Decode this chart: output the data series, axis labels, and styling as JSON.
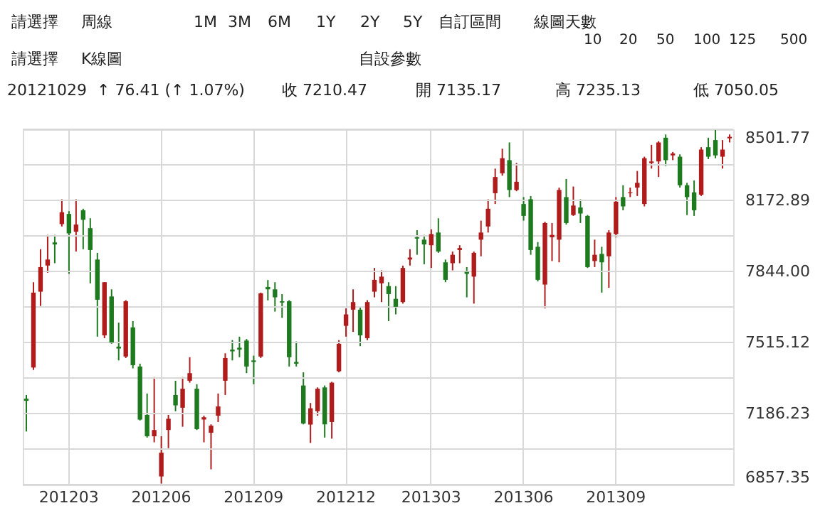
{
  "chart_data": {
    "type": "candlestick",
    "annotations": [
      "請選擇",
      "周線",
      "1M",
      "3M",
      "6M",
      "1Y",
      "2Y",
      "5Y",
      "自訂區間",
      "線圖天數",
      "10",
      "20",
      "50",
      "100",
      "125",
      "500",
      "請選擇",
      "K線圖",
      "自設參數",
      "20121029",
      "↑ 76.41 (↑ 1.07%)",
      "收 7210.47",
      "開 7135.17",
      "高 7235.13",
      "低 7050.05"
    ],
    "categories": [
      null,
      null,
      null,
      null,
      null,
      null,
      "201203",
      null,
      null,
      null,
      null,
      null,
      null,
      null,
      null,
      null,
      null,
      null,
      null,
      "201206",
      null,
      null,
      null,
      null,
      null,
      null,
      null,
      null,
      null,
      null,
      null,
      null,
      "201209",
      null,
      null,
      null,
      null,
      null,
      null,
      null,
      null,
      null,
      null,
      null,
      null,
      "201212",
      null,
      null,
      null,
      null,
      null,
      null,
      null,
      null,
      null,
      null,
      null,
      "201303",
      null,
      null,
      null,
      null,
      null,
      null,
      null,
      null,
      null,
      null,
      null,
      null,
      "201306",
      null,
      null,
      null,
      null,
      null,
      null,
      null,
      null,
      null,
      null,
      null,
      null,
      "201309",
      null,
      null,
      null,
      null,
      null,
      null,
      null,
      null,
      null,
      null,
      null,
      null,
      null,
      null,
      null,
      null
    ],
    "ohlc": [
      [
        7255,
        7272,
        7103,
        7245
      ],
      [
        7399,
        7794,
        7388,
        7746
      ],
      [
        7750,
        7947,
        7684,
        7864
      ],
      [
        7871,
        8013,
        7838,
        7899
      ],
      [
        7978,
        8013,
        7882,
        7969
      ],
      [
        8063,
        8178,
        8052,
        8118
      ],
      [
        8110,
        8123,
        7833,
        8020
      ],
      [
        8028,
        8178,
        7936,
        8061
      ],
      [
        8127,
        8134,
        7947,
        8083
      ],
      [
        8044,
        8090,
        7789,
        7943
      ],
      [
        7899,
        7930,
        7542,
        7713
      ],
      [
        7548,
        7794,
        7535,
        7794
      ],
      [
        7728,
        7761,
        7509,
        7515
      ],
      [
        7496,
        7607,
        7432,
        7487
      ],
      [
        7450,
        7711,
        7443,
        7706
      ],
      [
        7585,
        7614,
        7395,
        7410
      ],
      [
        7404,
        7417,
        7154,
        7158
      ],
      [
        7180,
        7279,
        7075,
        7081
      ],
      [
        7081,
        7355,
        7053,
        7110
      ],
      [
        6895,
        7081,
        6862,
        7005
      ],
      [
        7110,
        7180,
        7026,
        7162
      ],
      [
        7272,
        7338,
        7197,
        7224
      ],
      [
        7213,
        7355,
        7125,
        7301
      ],
      [
        7338,
        7447,
        7329,
        7373
      ],
      [
        7301,
        7322,
        7110,
        7114
      ],
      [
        7158,
        7176,
        7053,
        7169
      ],
      [
        7097,
        7136,
        6928,
        7130
      ],
      [
        7176,
        7279,
        7147,
        7219
      ],
      [
        7338,
        7465,
        7272,
        7443
      ],
      [
        7482,
        7526,
        7432,
        7474
      ],
      [
        7491,
        7542,
        7447,
        7482
      ],
      [
        7524,
        7531,
        7373,
        7404
      ],
      [
        7432,
        7454,
        7322,
        7425
      ],
      [
        7450,
        7746,
        7443,
        7743
      ],
      [
        7772,
        7804,
        7710,
        7761
      ],
      [
        7761,
        7794,
        7658,
        7724
      ],
      [
        7706,
        7739,
        7629,
        7700
      ],
      [
        7706,
        7711,
        7404,
        7447
      ],
      [
        7425,
        7520,
        7404,
        7417
      ],
      [
        7316,
        7377,
        7136,
        7140
      ],
      [
        7135.17,
        7235.13,
        7050.05,
        7210.47
      ],
      [
        7197,
        7307,
        7176,
        7301
      ],
      [
        7307,
        7316,
        7075,
        7136
      ],
      [
        7147,
        7333,
        7070,
        7329
      ],
      [
        7382,
        7526,
        7377,
        7509
      ],
      [
        7592,
        7673,
        7542,
        7645
      ],
      [
        7667,
        7761,
        7564,
        7702
      ],
      [
        7667,
        7680,
        7498,
        7548
      ],
      [
        7535,
        7711,
        7526,
        7702
      ],
      [
        7750,
        7860,
        7724,
        7805
      ],
      [
        7789,
        7849,
        7702,
        7820
      ],
      [
        7776,
        7794,
        7614,
        7739
      ],
      [
        7717,
        7776,
        7645,
        7680
      ],
      [
        7702,
        7871,
        7695,
        7860
      ],
      [
        7899,
        7947,
        7871,
        7908
      ],
      [
        8002,
        8035,
        7921,
        7996
      ],
      [
        7991,
        8013,
        7877,
        7969
      ],
      [
        7965,
        8039,
        7860,
        8017
      ],
      [
        8024,
        8090,
        7930,
        7936
      ],
      [
        7886,
        7899,
        7794,
        7805
      ],
      [
        7882,
        7936,
        7849,
        7921
      ],
      [
        7943,
        7965,
        7882,
        7952
      ],
      [
        7842,
        7864,
        7724,
        7833
      ],
      [
        7820,
        7936,
        7695,
        7930
      ],
      [
        7991,
        8079,
        7914,
        8024
      ],
      [
        8052,
        8178,
        8024,
        8134
      ],
      [
        8206,
        8320,
        8156,
        8281
      ],
      [
        8298,
        8412,
        8287,
        8368
      ],
      [
        8359,
        8441,
        8188,
        8221
      ],
      [
        8221,
        8346,
        8215,
        8259
      ],
      [
        8156,
        8188,
        8079,
        8101
      ],
      [
        8178,
        8193,
        7921,
        7943
      ],
      [
        7958,
        7980,
        7798,
        7805
      ],
      [
        7783,
        8074,
        7673,
        8068
      ],
      [
        8002,
        8068,
        7892,
        8013
      ],
      [
        7991,
        8232,
        7886,
        8221
      ],
      [
        8188,
        8272,
        8061,
        8068
      ],
      [
        8105,
        8237,
        8101,
        8149
      ],
      [
        8140,
        8178,
        8068,
        8112
      ],
      [
        8101,
        8105,
        7860,
        7864
      ],
      [
        7892,
        7991,
        7864,
        7921
      ],
      [
        7925,
        7958,
        7746,
        7886
      ],
      [
        7914,
        8035,
        7768,
        8024
      ],
      [
        8017,
        8188,
        8002,
        8167
      ],
      [
        8188,
        8243,
        8127,
        8145
      ],
      [
        8206,
        8232,
        8188,
        8210
      ],
      [
        8232,
        8309,
        8193,
        8254
      ],
      [
        8156,
        8375,
        8145,
        8368
      ],
      [
        8346,
        8430,
        8320,
        8353
      ],
      [
        8353,
        8447,
        8281,
        8441
      ],
      [
        8463,
        8478,
        8331,
        8359
      ],
      [
        8381,
        8397,
        8359,
        8390
      ],
      [
        8375,
        8386,
        8232,
        8243
      ],
      [
        8243,
        8254,
        8105,
        8188
      ],
      [
        8210,
        8265,
        8101,
        8127
      ],
      [
        8199,
        8419,
        8193,
        8408
      ],
      [
        8419,
        8463,
        8364,
        8375
      ],
      [
        8452,
        8500,
        8368,
        8381
      ],
      [
        8375,
        8452,
        8320,
        8408
      ],
      [
        8460,
        8478,
        8441,
        8467
      ]
    ],
    "colors": [
      "#1e7a1e",
      "#b01c1c",
      "#b01c1c",
      "#b01c1c",
      "#1e7a1e",
      "#b01c1c",
      "#1e7a1e",
      "#b01c1c",
      "#1e7a1e",
      "#1e7a1e",
      "#1e7a1e",
      "#b01c1c",
      "#1e7a1e",
      "#1e7a1e",
      "#b01c1c",
      "#1e7a1e",
      "#1e7a1e",
      "#1e7a1e",
      "#b01c1c",
      "#b01c1c",
      "#b01c1c",
      "#1e7a1e",
      "#b01c1c",
      "#b01c1c",
      "#1e7a1e",
      "#b01c1c",
      "#b01c1c",
      "#b01c1c",
      "#b01c1c",
      "#1e7a1e",
      "#1e7a1e",
      "#1e7a1e",
      "#1e7a1e",
      "#b01c1c",
      "#1e7a1e",
      "#1e7a1e",
      "#1e7a1e",
      "#1e7a1e",
      "#1e7a1e",
      "#1e7a1e",
      "#b01c1c",
      "#b01c1c",
      "#1e7a1e",
      "#b01c1c",
      "#b01c1c",
      "#b01c1c",
      "#b01c1c",
      "#1e7a1e",
      "#b01c1c",
      "#b01c1c",
      "#b01c1c",
      "#1e7a1e",
      "#1e7a1e",
      "#b01c1c",
      "#b01c1c",
      "#1e7a1e",
      "#1e7a1e",
      "#b01c1c",
      "#1e7a1e",
      "#1e7a1e",
      "#b01c1c",
      "#b01c1c",
      "#1e7a1e",
      "#b01c1c",
      "#b01c1c",
      "#b01c1c",
      "#b01c1c",
      "#b01c1c",
      "#1e7a1e",
      "#b01c1c",
      "#1e7a1e",
      "#1e7a1e",
      "#1e7a1e",
      "#b01c1c",
      "#b01c1c",
      "#b01c1c",
      "#1e7a1e",
      "#b01c1c",
      "#1e7a1e",
      "#1e7a1e",
      "#b01c1c",
      "#1e7a1e",
      "#b01c1c",
      "#b01c1c",
      "#1e7a1e",
      "#b01c1c",
      "#b01c1c",
      "#b01c1c",
      "#b01c1c",
      "#b01c1c",
      "#1e7a1e",
      "#b01c1c",
      "#1e7a1e",
      "#1e7a1e",
      "#1e7a1e",
      "#b01c1c",
      "#1e7a1e",
      "#1e7a1e",
      "#b01c1c",
      "#b01c1c"
    ],
    "ylim": [
      6857.35,
      8501.77
    ],
    "yticks": [
      6857.35,
      {
        "value": 7021.79,
        "label": null
      },
      7186.23,
      {
        "value": 7350.675,
        "label": null
      },
      7515.12,
      {
        "value": 7679.56,
        "label": null
      },
      {
        "value": 7844.0,
        "label": "7844.00"
      },
      {
        "value": 8008.445,
        "label": null
      },
      8172.89,
      {
        "value": 8337.33,
        "label": null
      },
      8501.77
    ],
    "grid": true
  }
}
